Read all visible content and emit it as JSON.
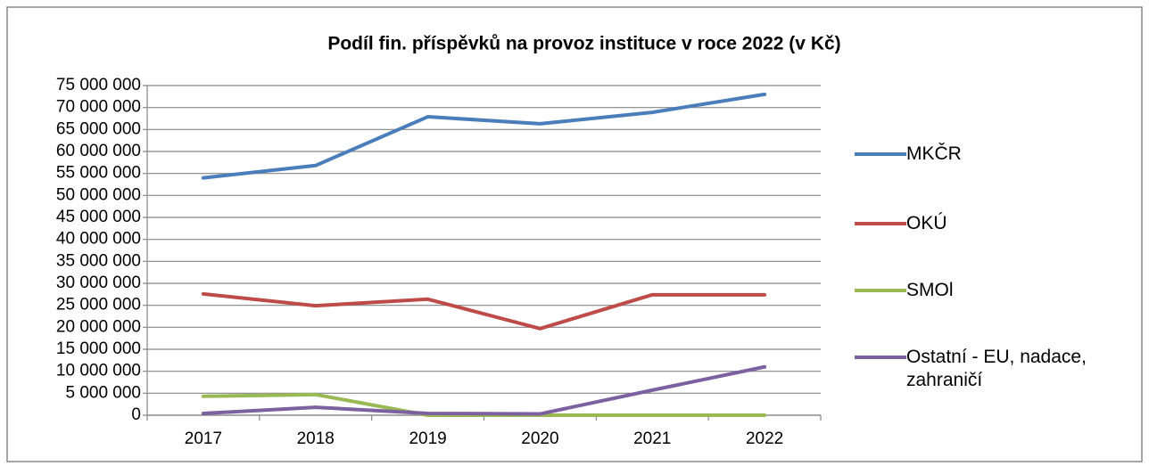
{
  "chart_data": {
    "type": "line",
    "title": "Podíl fin. příspěvků na provoz instituce v roce 2022 (v Kč)",
    "categories": [
      "2017",
      "2018",
      "2019",
      "2020",
      "2021",
      "2022"
    ],
    "series": [
      {
        "name": "MKČR",
        "color": "#4a7ebb",
        "values": [
          54000000,
          56800000,
          67900000,
          66300000,
          68900000,
          73000000
        ]
      },
      {
        "name": "OKÚ",
        "color": "#be4b48",
        "values": [
          27600000,
          24900000,
          26400000,
          19700000,
          27400000,
          27400000
        ]
      },
      {
        "name": "SMOl",
        "color": "#98b954",
        "values": [
          4300000,
          4700000,
          0,
          0,
          0,
          0
        ]
      },
      {
        "name": "Ostatní - EU, nadace, zahraničí",
        "color": "#7d60a0",
        "values": [
          400000,
          1800000,
          400000,
          300000,
          5700000,
          11000000
        ]
      }
    ],
    "ylim": [
      0,
      75000000
    ],
    "yticks": [
      {
        "value": 0,
        "label": "0"
      },
      {
        "value": 5000000,
        "label": "5 000 000"
      },
      {
        "value": 10000000,
        "label": "10 000 000"
      },
      {
        "value": 15000000,
        "label": "15 000 000"
      },
      {
        "value": 20000000,
        "label": "20 000 000"
      },
      {
        "value": 25000000,
        "label": "25 000 000"
      },
      {
        "value": 30000000,
        "label": "30 000 000"
      },
      {
        "value": 35000000,
        "label": "35 000 000"
      },
      {
        "value": 40000000,
        "label": "40 000 000"
      },
      {
        "value": 45000000,
        "label": "45 000 000"
      },
      {
        "value": 50000000,
        "label": "50 000 000"
      },
      {
        "value": 55000000,
        "label": "55 000 000"
      },
      {
        "value": 60000000,
        "label": "60 000 000"
      },
      {
        "value": 65000000,
        "label": "65 000 000"
      },
      {
        "value": 70000000,
        "label": "70 000 000"
      },
      {
        "value": 75000000,
        "label": "75 000 000"
      }
    ],
    "grid": true,
    "legend": "right"
  }
}
